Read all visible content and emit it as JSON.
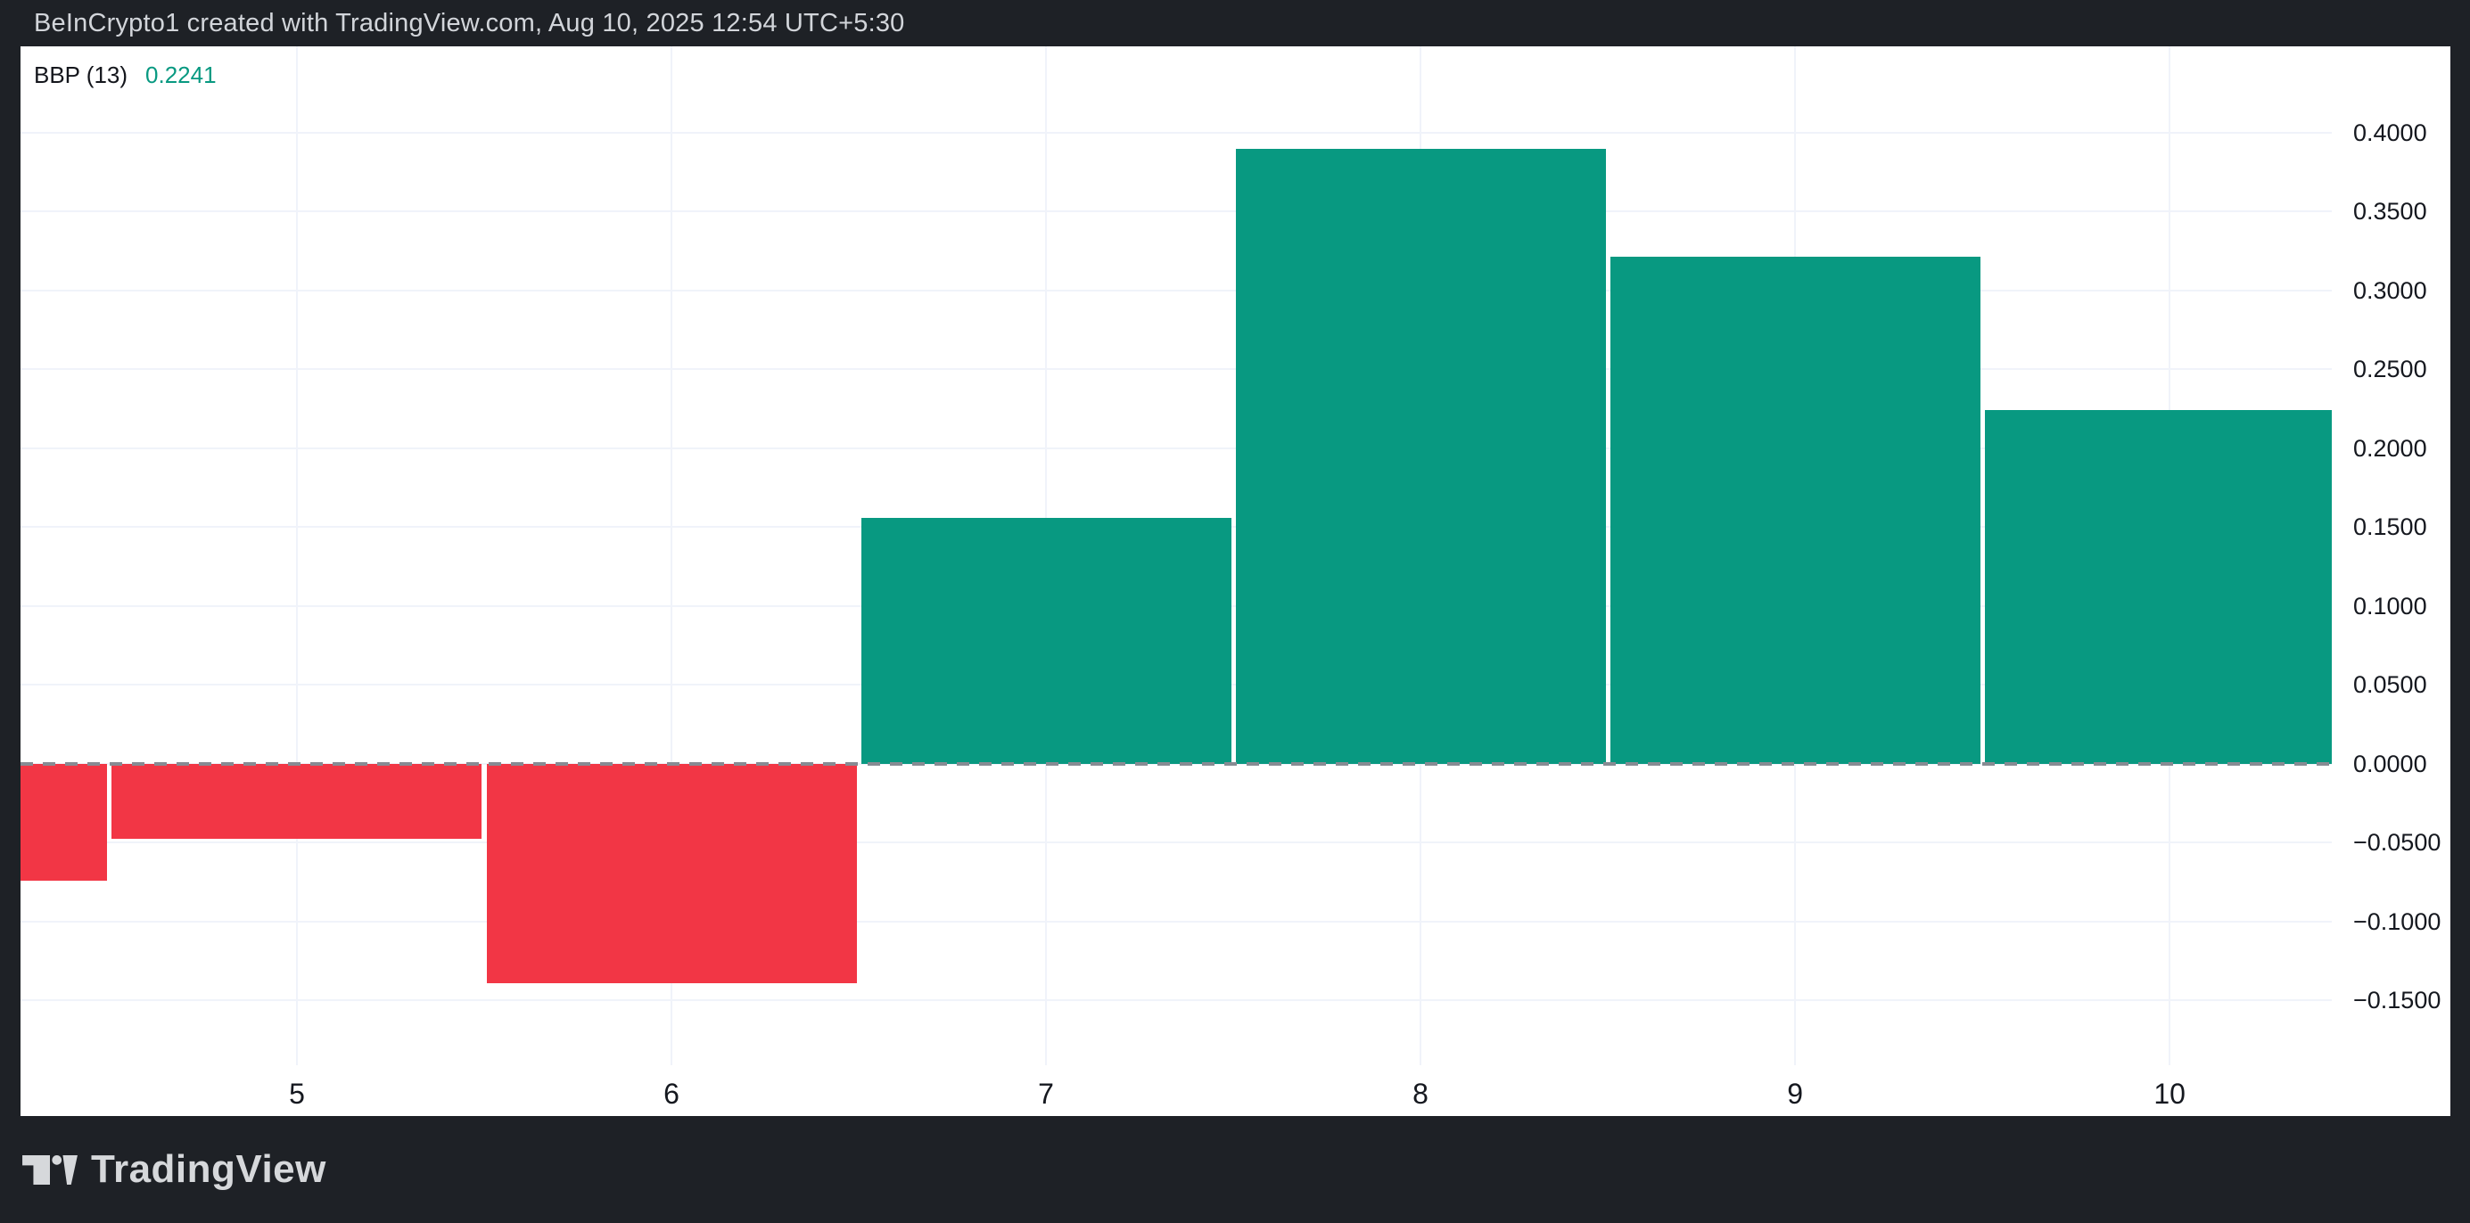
{
  "header": {
    "title": "BeInCrypto1 created with TradingView.com, Aug 10, 2025 12:54 UTC+5:30"
  },
  "legend": {
    "indicator": "BBP (13)",
    "value": "0.2241"
  },
  "footer": {
    "brand": "TradingView"
  },
  "colors": {
    "positive": "#089981",
    "negative": "#f23645",
    "value_text": "#089981",
    "grid": "#f0f3fa",
    "zero_line": "#878b93",
    "panel_bg": "#ffffff",
    "frame_bg": "#1e2126",
    "axis_text": "#15181f",
    "header_text": "#d2d5da"
  },
  "chart_data": {
    "type": "bar",
    "title": "BBP (13)",
    "x": [
      4,
      5,
      6,
      7,
      8,
      9,
      10
    ],
    "values": [
      -0.074,
      -0.0475,
      -0.139,
      0.156,
      0.39,
      0.3215,
      0.2241
    ],
    "last_value": 0.2241,
    "xlabel": "",
    "ylabel": "",
    "xlim": [
      4.262,
      10.433
    ],
    "ylim": [
      -0.191,
      0.4548
    ],
    "bar_width_ratio": 0.988,
    "grid": true,
    "legend_position": "top-left",
    "y_ticks": [
      {
        "v": 0.4,
        "label": "0.4000"
      },
      {
        "v": 0.35,
        "label": "0.3500"
      },
      {
        "v": 0.3,
        "label": "0.3000"
      },
      {
        "v": 0.25,
        "label": "0.2500"
      },
      {
        "v": 0.2,
        "label": "0.2000"
      },
      {
        "v": 0.15,
        "label": "0.1500"
      },
      {
        "v": 0.1,
        "label": "0.1000"
      },
      {
        "v": 0.05,
        "label": "0.0500"
      },
      {
        "v": 0.0,
        "label": "0.0000"
      },
      {
        "v": -0.05,
        "label": "−0.0500"
      },
      {
        "v": -0.1,
        "label": "−0.1000"
      },
      {
        "v": -0.15,
        "label": "−0.1500"
      }
    ],
    "x_ticks": [
      {
        "v": 5,
        "label": "5"
      },
      {
        "v": 6,
        "label": "6"
      },
      {
        "v": 7,
        "label": "7"
      },
      {
        "v": 8,
        "label": "8"
      },
      {
        "v": 9,
        "label": "9"
      },
      {
        "v": 10,
        "label": "10"
      }
    ]
  }
}
